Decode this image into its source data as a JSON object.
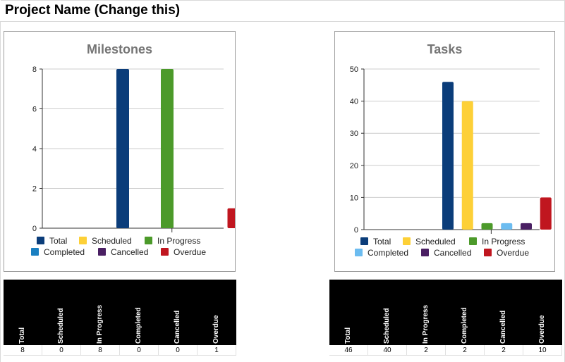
{
  "page": {
    "title": "Project Name (Change this)"
  },
  "colors": {
    "total": "#0b3d7a",
    "scheduled": "#fdd037",
    "in_progress": "#4c9a2a",
    "completed": "#1a7fc1",
    "completed_tasks": "#6cbcf0",
    "cancelled": "#4a1f63",
    "overdue": "#c0161f"
  },
  "chart_data": [
    {
      "type": "bar",
      "title": "Milestones",
      "categories": [
        "Total",
        "Scheduled",
        "In Progress",
        "Completed",
        "Cancelled",
        "Overdue"
      ],
      "values": [
        8,
        0,
        8,
        0,
        0,
        1
      ],
      "colors": [
        "#0b3d7a",
        "#fdd037",
        "#4c9a2a",
        "#1a7fc1",
        "#4a1f63",
        "#c0161f"
      ],
      "ylim": [
        0,
        8
      ],
      "yticks": [
        0,
        2,
        4,
        6,
        8
      ],
      "grid": true,
      "legend": [
        "Total",
        "Scheduled",
        "In Progress",
        "Completed",
        "Cancelled",
        "Overdue"
      ],
      "legend_position": "bottom"
    },
    {
      "type": "bar",
      "title": "Tasks",
      "categories": [
        "Total",
        "Scheduled",
        "In Progress",
        "Completed",
        "Cancelled",
        "Overdue"
      ],
      "values": [
        46,
        40,
        2,
        2,
        2,
        10
      ],
      "colors": [
        "#0b3d7a",
        "#fdd037",
        "#4c9a2a",
        "#6cbcf0",
        "#4a1f63",
        "#c0161f"
      ],
      "ylim": [
        0,
        50
      ],
      "yticks": [
        0,
        10,
        20,
        30,
        40,
        50
      ],
      "grid": true,
      "legend": [
        "Total",
        "Scheduled",
        "In Progress",
        "Completed",
        "Cancelled",
        "Overdue"
      ],
      "legend_position": "bottom"
    }
  ],
  "tables": {
    "milestones": {
      "headers": [
        "Total",
        "Scheduled",
        "In Progress",
        "Completed",
        "Cancelled",
        "Overdue"
      ],
      "values": [
        "8",
        "0",
        "8",
        "0",
        "0",
        "1"
      ]
    },
    "tasks": {
      "headers": [
        "Total",
        "Scheduled",
        "In Progress",
        "Completed",
        "Cancelled",
        "Overdue"
      ],
      "values": [
        "46",
        "40",
        "2",
        "2",
        "2",
        "10"
      ]
    }
  }
}
